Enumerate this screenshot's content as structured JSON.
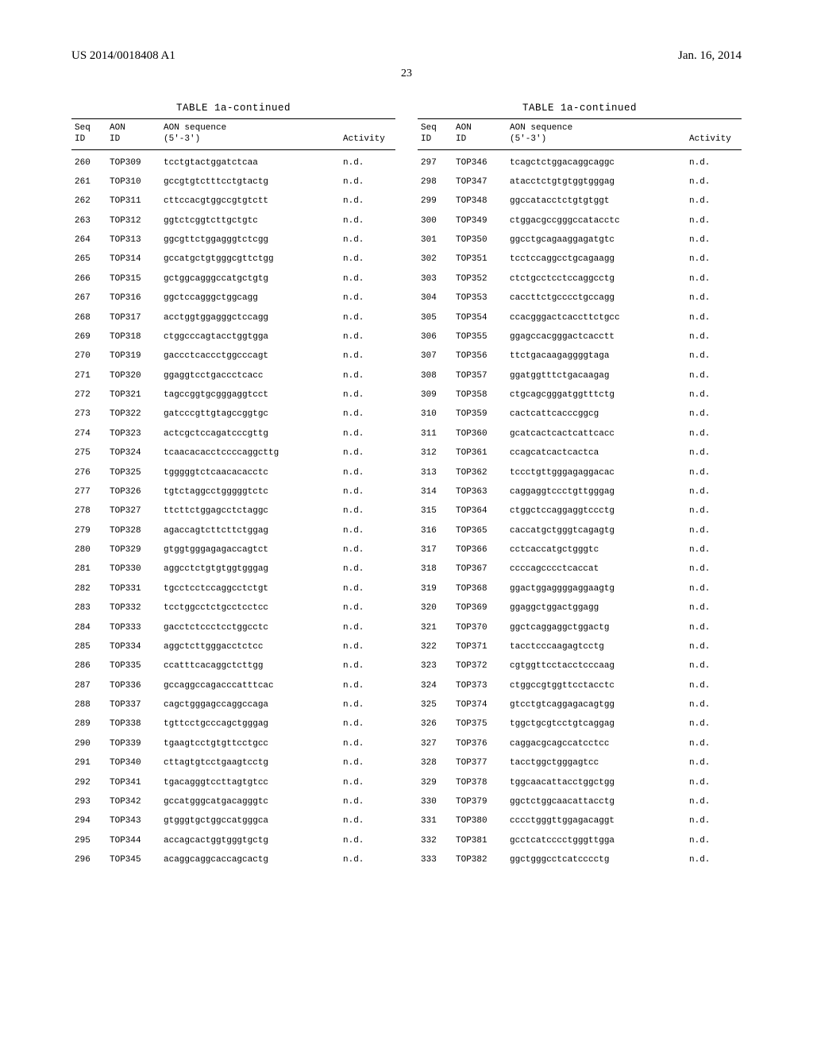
{
  "header": {
    "left": "US 2014/0018408 A1",
    "right": "Jan. 16, 2014"
  },
  "page_number": "23",
  "table_title": "TABLE 1a-continued",
  "columns": {
    "seq_id": "Seq\nID",
    "aon_id": "AON\nID",
    "aon_sequence": "AON sequence\n(5'-3')",
    "activity": "Activity"
  },
  "left_rows": [
    {
      "seq": "260",
      "aon": "TOP309",
      "seqstr": "tcctgtactggatctcaa",
      "act": "n.d."
    },
    {
      "seq": "261",
      "aon": "TOP310",
      "seqstr": "gccgtgtctttcctgtactg",
      "act": "n.d."
    },
    {
      "seq": "262",
      "aon": "TOP311",
      "seqstr": "cttccacgtggccgtgtctt",
      "act": "n.d."
    },
    {
      "seq": "263",
      "aon": "TOP312",
      "seqstr": "ggtctcggtcttgctgtc",
      "act": "n.d."
    },
    {
      "seq": "264",
      "aon": "TOP313",
      "seqstr": "ggcgttctggagggtctcgg",
      "act": "n.d."
    },
    {
      "seq": "265",
      "aon": "TOP314",
      "seqstr": "gccatgctgtgggcgttctgg",
      "act": "n.d."
    },
    {
      "seq": "266",
      "aon": "TOP315",
      "seqstr": "gctggcagggccatgctgtg",
      "act": "n.d."
    },
    {
      "seq": "267",
      "aon": "TOP316",
      "seqstr": "ggctccagggctggcagg",
      "act": "n.d."
    },
    {
      "seq": "268",
      "aon": "TOP317",
      "seqstr": "acctggtggagggctccagg",
      "act": "n.d."
    },
    {
      "seq": "269",
      "aon": "TOP318",
      "seqstr": "ctggcccagtacctggtgga",
      "act": "n.d."
    },
    {
      "seq": "270",
      "aon": "TOP319",
      "seqstr": "gaccctcaccctggcccagt",
      "act": "n.d."
    },
    {
      "seq": "271",
      "aon": "TOP320",
      "seqstr": "ggaggtcctgaccctcacc",
      "act": "n.d."
    },
    {
      "seq": "272",
      "aon": "TOP321",
      "seqstr": "tagccggtgcgggaggtcct",
      "act": "n.d."
    },
    {
      "seq": "273",
      "aon": "TOP322",
      "seqstr": "gatcccgttgtagccggtgc",
      "act": "n.d."
    },
    {
      "seq": "274",
      "aon": "TOP323",
      "seqstr": "actcgctccagatcccgttg",
      "act": "n.d."
    },
    {
      "seq": "275",
      "aon": "TOP324",
      "seqstr": "tcaacacacctccccaggcttg",
      "act": "n.d."
    },
    {
      "seq": "276",
      "aon": "TOP325",
      "seqstr": "tgggggtctcaacacacctc",
      "act": "n.d."
    },
    {
      "seq": "277",
      "aon": "TOP326",
      "seqstr": "tgtctaggcctgggggtctc",
      "act": "n.d."
    },
    {
      "seq": "278",
      "aon": "TOP327",
      "seqstr": "ttcttctggagcctctaggc",
      "act": "n.d."
    },
    {
      "seq": "279",
      "aon": "TOP328",
      "seqstr": "agaccagtcttcttctggag",
      "act": "n.d."
    },
    {
      "seq": "280",
      "aon": "TOP329",
      "seqstr": "gtggtgggagagaccagtct",
      "act": "n.d."
    },
    {
      "seq": "281",
      "aon": "TOP330",
      "seqstr": "aggcctctgtgtggtgggag",
      "act": "n.d."
    },
    {
      "seq": "282",
      "aon": "TOP331",
      "seqstr": "tgcctcctccaggcctctgt",
      "act": "n.d."
    },
    {
      "seq": "283",
      "aon": "TOP332",
      "seqstr": "tcctggcctctgcctcctcc",
      "act": "n.d."
    },
    {
      "seq": "284",
      "aon": "TOP333",
      "seqstr": "gacctctccctcctggcctc",
      "act": "n.d."
    },
    {
      "seq": "285",
      "aon": "TOP334",
      "seqstr": "aggctcttgggacctctcc",
      "act": "n.d."
    },
    {
      "seq": "286",
      "aon": "TOP335",
      "seqstr": "ccatttcacaggctcttgg",
      "act": "n.d."
    },
    {
      "seq": "287",
      "aon": "TOP336",
      "seqstr": "gccaggccagacccatttcac",
      "act": "n.d."
    },
    {
      "seq": "288",
      "aon": "TOP337",
      "seqstr": "cagctgggagccaggccaga",
      "act": "n.d."
    },
    {
      "seq": "289",
      "aon": "TOP338",
      "seqstr": "tgttcctgcccagctgggag",
      "act": "n.d."
    },
    {
      "seq": "290",
      "aon": "TOP339",
      "seqstr": "tgaagtcctgtgttcctgcc",
      "act": "n.d."
    },
    {
      "seq": "291",
      "aon": "TOP340",
      "seqstr": "cttagtgtcctgaagtcctg",
      "act": "n.d."
    },
    {
      "seq": "292",
      "aon": "TOP341",
      "seqstr": "tgacagggtccttagtgtcc",
      "act": "n.d."
    },
    {
      "seq": "293",
      "aon": "TOP342",
      "seqstr": "gccatgggcatgacagggtc",
      "act": "n.d."
    },
    {
      "seq": "294",
      "aon": "TOP343",
      "seqstr": "gtgggtgctggccatgggca",
      "act": "n.d."
    },
    {
      "seq": "295",
      "aon": "TOP344",
      "seqstr": "accagcactggtgggtgctg",
      "act": "n.d."
    },
    {
      "seq": "296",
      "aon": "TOP345",
      "seqstr": "acaggcaggcaccagcactg",
      "act": "n.d."
    }
  ],
  "right_rows": [
    {
      "seq": "297",
      "aon": "TOP346",
      "seqstr": "tcagctctggacaggcaggc",
      "act": "n.d."
    },
    {
      "seq": "298",
      "aon": "TOP347",
      "seqstr": "atacctctgtgtggtgggag",
      "act": "n.d."
    },
    {
      "seq": "299",
      "aon": "TOP348",
      "seqstr": "ggccatacctctgtgtggt",
      "act": "n.d."
    },
    {
      "seq": "300",
      "aon": "TOP349",
      "seqstr": "ctggacgccgggccatacctc",
      "act": "n.d."
    },
    {
      "seq": "301",
      "aon": "TOP350",
      "seqstr": "ggcctgcagaaggagatgtc",
      "act": "n.d."
    },
    {
      "seq": "302",
      "aon": "TOP351",
      "seqstr": "tcctccaggcctgcagaagg",
      "act": "n.d."
    },
    {
      "seq": "303",
      "aon": "TOP352",
      "seqstr": "ctctgcctcctccaggcctg",
      "act": "n.d."
    },
    {
      "seq": "304",
      "aon": "TOP353",
      "seqstr": "caccttctgcccctgccagg",
      "act": "n.d."
    },
    {
      "seq": "305",
      "aon": "TOP354",
      "seqstr": "ccacgggactcaccttctgcc",
      "act": "n.d."
    },
    {
      "seq": "306",
      "aon": "TOP355",
      "seqstr": "ggagccacgggactcacctt",
      "act": "n.d."
    },
    {
      "seq": "307",
      "aon": "TOP356",
      "seqstr": "ttctgacaagaggggtaga",
      "act": "n.d."
    },
    {
      "seq": "308",
      "aon": "TOP357",
      "seqstr": "ggatggtttctgacaagag",
      "act": "n.d."
    },
    {
      "seq": "309",
      "aon": "TOP358",
      "seqstr": "ctgcagcgggatggtttctg",
      "act": "n.d."
    },
    {
      "seq": "310",
      "aon": "TOP359",
      "seqstr": "cactcattcacccggcg",
      "act": "n.d."
    },
    {
      "seq": "311",
      "aon": "TOP360",
      "seqstr": "gcatcactcactcattcacc",
      "act": "n.d."
    },
    {
      "seq": "312",
      "aon": "TOP361",
      "seqstr": "ccagcatcactcactca",
      "act": "n.d."
    },
    {
      "seq": "313",
      "aon": "TOP362",
      "seqstr": "tccctgttgggagaggacac",
      "act": "n.d."
    },
    {
      "seq": "314",
      "aon": "TOP363",
      "seqstr": "caggaggtccctgttgggag",
      "act": "n.d."
    },
    {
      "seq": "315",
      "aon": "TOP364",
      "seqstr": "ctggctccaggaggtccctg",
      "act": "n.d."
    },
    {
      "seq": "316",
      "aon": "TOP365",
      "seqstr": "caccatgctgggtcagagtg",
      "act": "n.d."
    },
    {
      "seq": "317",
      "aon": "TOP366",
      "seqstr": "cctcaccatgctgggtc",
      "act": "n.d."
    },
    {
      "seq": "318",
      "aon": "TOP367",
      "seqstr": "ccccagcccctcaccat",
      "act": "n.d."
    },
    {
      "seq": "319",
      "aon": "TOP368",
      "seqstr": "ggactggaggggaggaagtg",
      "act": "n.d."
    },
    {
      "seq": "320",
      "aon": "TOP369",
      "seqstr": "ggaggctggactggagg",
      "act": "n.d."
    },
    {
      "seq": "321",
      "aon": "TOP370",
      "seqstr": "ggctcaggaggctggactg",
      "act": "n.d."
    },
    {
      "seq": "322",
      "aon": "TOP371",
      "seqstr": "tacctcccaagagtcctg",
      "act": "n.d."
    },
    {
      "seq": "323",
      "aon": "TOP372",
      "seqstr": "cgtggttcctacctcccaag",
      "act": "n.d."
    },
    {
      "seq": "324",
      "aon": "TOP373",
      "seqstr": "ctggccgtggttcctacctc",
      "act": "n.d."
    },
    {
      "seq": "325",
      "aon": "TOP374",
      "seqstr": "gtcctgtcaggagacagtgg",
      "act": "n.d."
    },
    {
      "seq": "326",
      "aon": "TOP375",
      "seqstr": "tggctgcgtcctgtcaggag",
      "act": "n.d."
    },
    {
      "seq": "327",
      "aon": "TOP376",
      "seqstr": "caggacgcagccatcctcc",
      "act": "n.d."
    },
    {
      "seq": "328",
      "aon": "TOP377",
      "seqstr": "tacctggctgggagtcc",
      "act": "n.d."
    },
    {
      "seq": "329",
      "aon": "TOP378",
      "seqstr": "tggcaacattacctggctgg",
      "act": "n.d."
    },
    {
      "seq": "330",
      "aon": "TOP379",
      "seqstr": "ggctctggcaacattacctg",
      "act": "n.d."
    },
    {
      "seq": "331",
      "aon": "TOP380",
      "seqstr": "cccctgggttggagacaggt",
      "act": "n.d."
    },
    {
      "seq": "332",
      "aon": "TOP381",
      "seqstr": "gcctcatcccctgggttgga",
      "act": "n.d."
    },
    {
      "seq": "333",
      "aon": "TOP382",
      "seqstr": "ggctgggcctcatcccctg",
      "act": "n.d."
    }
  ]
}
